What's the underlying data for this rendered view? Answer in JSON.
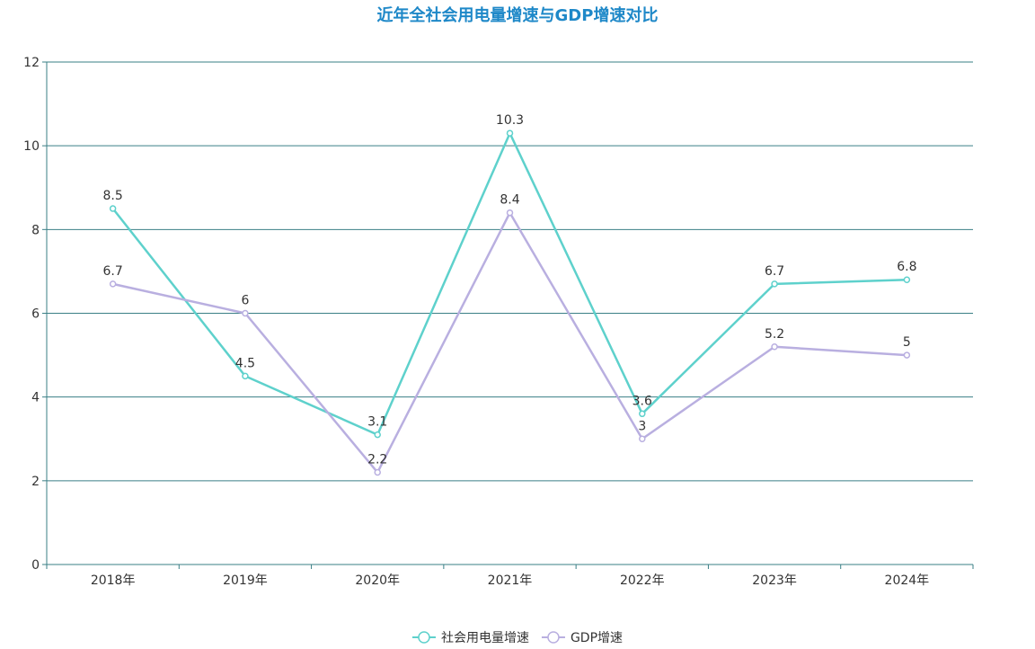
{
  "chart_data": {
    "type": "line",
    "title": "近年全社会用电量增速与GDP增速对比",
    "categories": [
      "2018年",
      "2019年",
      "2020年",
      "2021年",
      "2022年",
      "2023年",
      "2024年"
    ],
    "series": [
      {
        "name": "社会用电量增速",
        "values": [
          8.5,
          4.5,
          3.1,
          10.3,
          3.6,
          6.7,
          6.8
        ],
        "labels": [
          "8.5",
          "4.5",
          "3.1",
          "10.3",
          "3.6",
          "6.7",
          "6.8"
        ],
        "color": "#5ed1cc"
      },
      {
        "name": "GDP增速",
        "values": [
          6.7,
          6,
          2.2,
          8.4,
          3,
          5.2,
          5
        ],
        "labels": [
          "6.7",
          "6",
          "2.2",
          "8.4",
          "3",
          "5.2",
          "5"
        ],
        "color": "#b9afe0"
      }
    ],
    "ylim": [
      0,
      12
    ],
    "yticks": [
      "0",
      "2",
      "4",
      "6",
      "8",
      "10",
      "12"
    ],
    "grid": true,
    "legend_position": "bottom-center",
    "colors": {
      "title": "#1e88c8",
      "axis": "#3a7f86",
      "grid": "#3a7f86"
    }
  }
}
